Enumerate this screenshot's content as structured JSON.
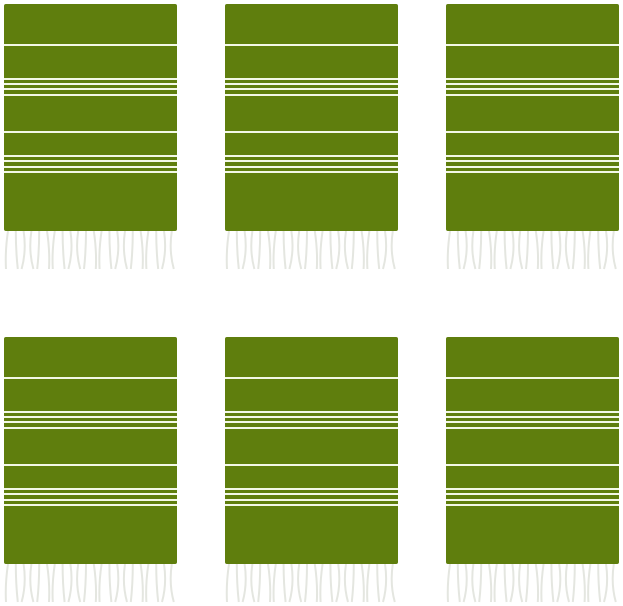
{
  "colors": {
    "towel": "#5f7e0d",
    "stripe": "#f3f8e6",
    "fringe": "#ffffff",
    "background": "#ffffff"
  }
}
